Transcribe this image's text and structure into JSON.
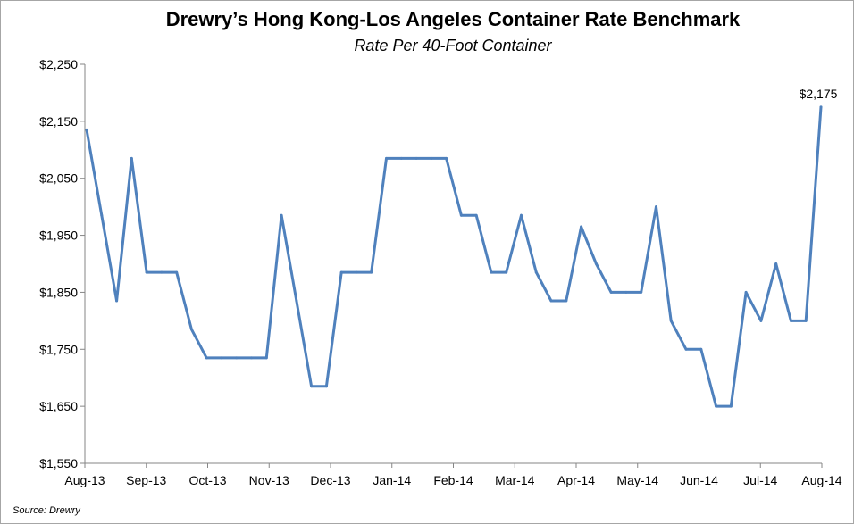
{
  "chart_data": {
    "type": "line",
    "title": "Drewry’s Hong Kong-Los Angeles Container Rate Benchmark",
    "subtitle": "Rate Per 40-Foot Container",
    "source": "Source: Drewry",
    "xlabel": "",
    "ylabel": "",
    "ylim": [
      1550,
      2250
    ],
    "y_ticks": [
      1550,
      1650,
      1750,
      1850,
      1950,
      2050,
      2150,
      2250
    ],
    "y_tick_labels": [
      "$1,550",
      "$1,650",
      "$1,750",
      "$1,850",
      "$1,950",
      "$2,050",
      "$2,150",
      "$2,250"
    ],
    "x_tick_labels": [
      "Aug-13",
      "Sep-13",
      "Oct-13",
      "Nov-13",
      "Dec-13",
      "Jan-14",
      "Feb-14",
      "Mar-14",
      "Apr-14",
      "May-14",
      "Jun-14",
      "Jul-14",
      "Aug-14"
    ],
    "grid": false,
    "legend": "none",
    "line_color": "#4f81bd",
    "annotation": {
      "text": "$2,175",
      "value": 2175
    },
    "series": [
      {
        "values": [
          2135,
          1985,
          1835,
          2085,
          1885,
          1885,
          1885,
          1785,
          1735,
          1735,
          1735,
          1735,
          1735,
          1985,
          1835,
          1685,
          1685,
          1885,
          1885,
          1885,
          2085,
          2085,
          2085,
          2085,
          2085,
          1985,
          1985,
          1885,
          1885,
          1985,
          1885,
          1835,
          1835,
          1965,
          1900,
          1850,
          1850,
          1850,
          2000,
          1800,
          1750,
          1750,
          1650,
          1650,
          1850,
          1800,
          1900,
          1800,
          1800,
          2175
        ]
      }
    ]
  }
}
